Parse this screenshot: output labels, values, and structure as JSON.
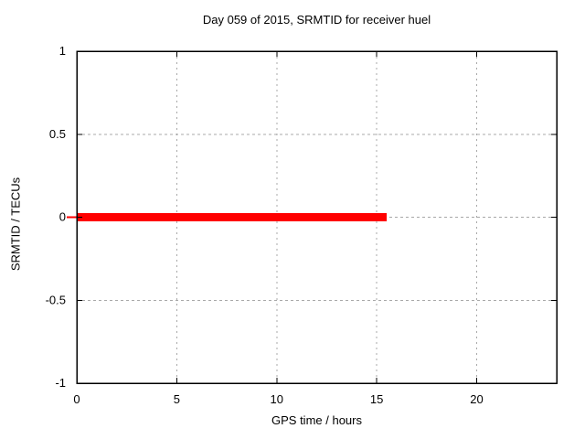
{
  "chart_data": {
    "type": "line",
    "title": "Day 059 of 2015, SRMTID for receiver huel",
    "xlabel": "GPS time / hours",
    "ylabel": "SRMTID / TECUs",
    "xlim": [
      0,
      24
    ],
    "ylim": [
      -1,
      1
    ],
    "xticks": [
      0,
      5,
      10,
      15,
      20
    ],
    "yticks": [
      -1,
      -0.5,
      0,
      0.5,
      1
    ],
    "grid": true,
    "legend": "none",
    "colors": {
      "axis": "#000000",
      "grid": "#a8a8a8",
      "text": "#000000",
      "background": "#ffffff",
      "series": "#ff0000"
    },
    "series": [
      {
        "name": "SRMTID",
        "color": "#ff0000",
        "line_width": 9,
        "x": [
          0,
          15.5
        ],
        "y": [
          0,
          0
        ]
      }
    ]
  }
}
